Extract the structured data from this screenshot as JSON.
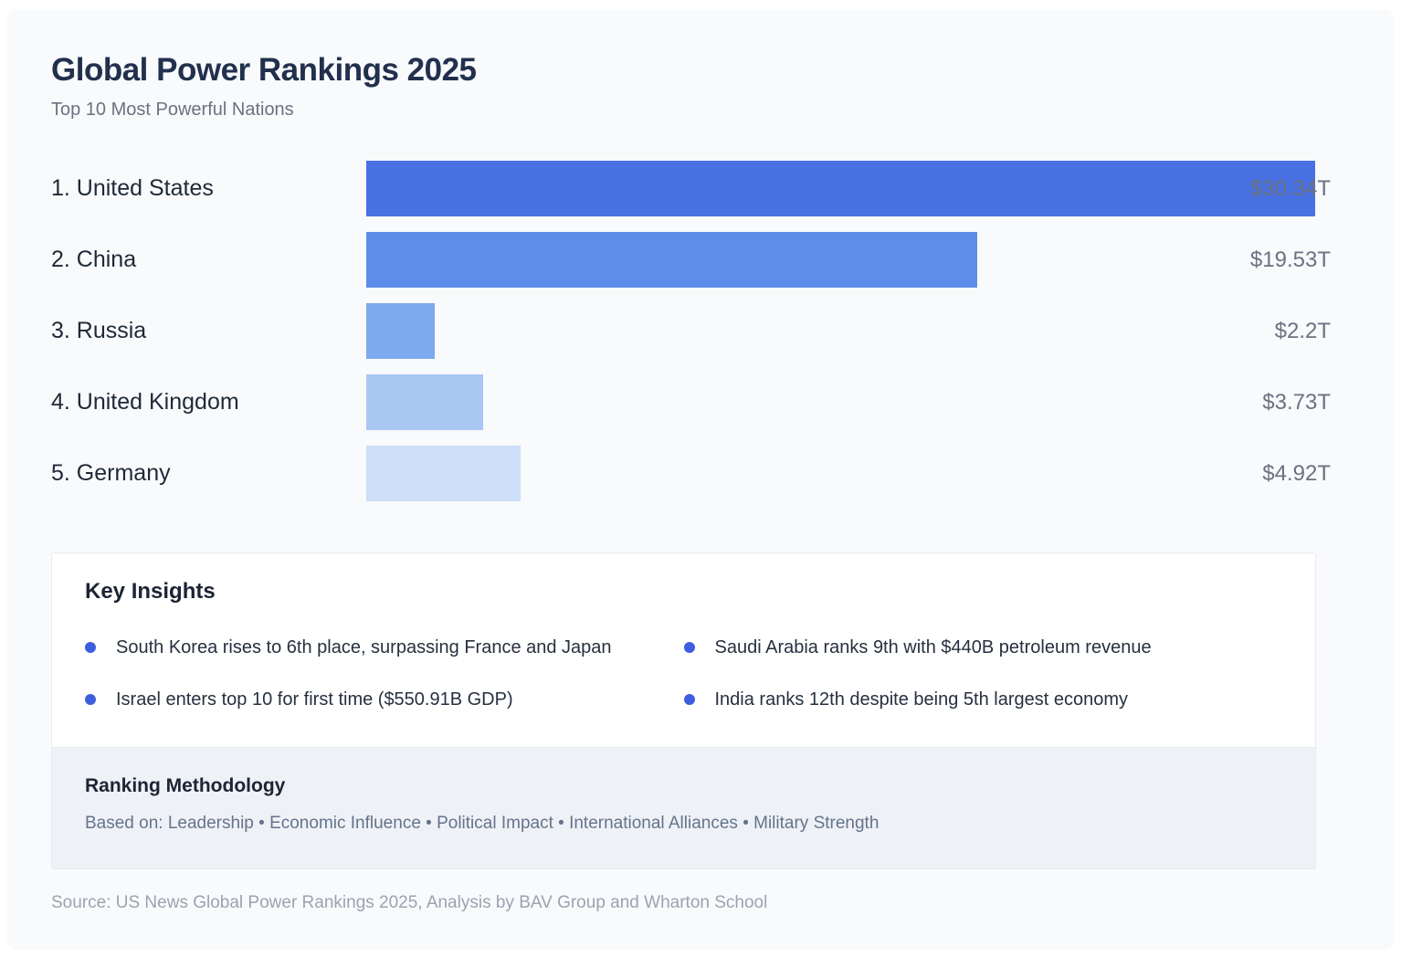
{
  "header": {
    "title": "Global Power Rankings 2025",
    "subtitle": "Top 10 Most Powerful Nations"
  },
  "chart_data": {
    "type": "bar",
    "orientation": "horizontal",
    "title": "Global Power Rankings 2025",
    "subtitle": "Top 10 Most Powerful Nations",
    "categories": [
      "1. United States",
      "2. China",
      "3. Russia",
      "4. United Kingdom",
      "5. Germany"
    ],
    "values": [
      30.34,
      19.53,
      2.2,
      3.73,
      4.92
    ],
    "value_labels": [
      "$30.34T",
      "$19.53T",
      "$2.2T",
      "$3.73T",
      "$4.92T"
    ],
    "unit": "trillion USD",
    "xlim": [
      0,
      30.34
    ],
    "bar_colors": [
      "#4A71E2",
      "#5E8CEA",
      "#7DA9EE",
      "#A9C7F3",
      "#CDDEF8"
    ],
    "value_label_color": "#6B7280",
    "grid": false,
    "legend": false
  },
  "insights": {
    "heading": "Key Insights",
    "bullet_color": "#3D5FDE",
    "items": [
      "South Korea rises to 6th place, surpassing France and Japan",
      "Saudi Arabia ranks 9th with $440B petroleum revenue",
      "Israel enters top 10 for first time ($550.91B GDP)",
      "India ranks 12th despite being 5th largest economy"
    ]
  },
  "methodology": {
    "heading": "Ranking Methodology",
    "text": "Based on: Leadership • Economic Influence • Political Impact • International Alliances • Military Strength"
  },
  "footer": {
    "source": "Source: US News Global Power Rankings 2025, Analysis by BAV Group and Wharton School"
  }
}
